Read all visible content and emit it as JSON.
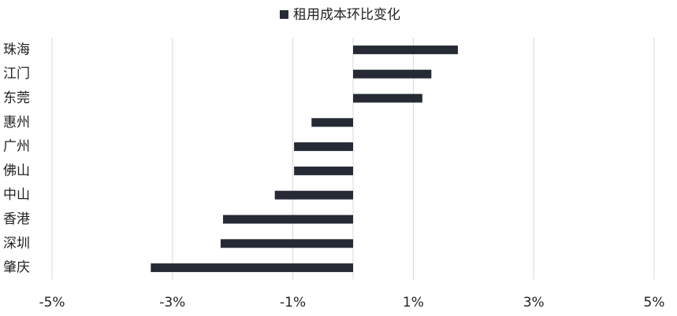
{
  "chart_data": {
    "type": "hbar",
    "categories": [
      "珠海",
      "江门",
      "东莞",
      "惠州",
      "广州",
      "佛山",
      "中山",
      "香港",
      "深圳",
      "肇庆"
    ],
    "series": [
      {
        "name": "租用成本环比变化",
        "color": "#252a34",
        "values": [
          1.74,
          1.3,
          1.15,
          -0.69,
          -0.98,
          -0.98,
          -1.3,
          -2.16,
          -2.2,
          -3.36
        ]
      }
    ],
    "xlim": [
      -5,
      5
    ],
    "xticks": [
      {
        "value": -5,
        "label": "-5%"
      },
      {
        "value": -3,
        "label": "-3%"
      },
      {
        "value": -1,
        "label": "-1%"
      },
      {
        "value": 1,
        "label": "1%"
      },
      {
        "value": 3,
        "label": "3%"
      },
      {
        "value": 5,
        "label": "5%"
      }
    ],
    "grid": true,
    "legend": "top"
  }
}
